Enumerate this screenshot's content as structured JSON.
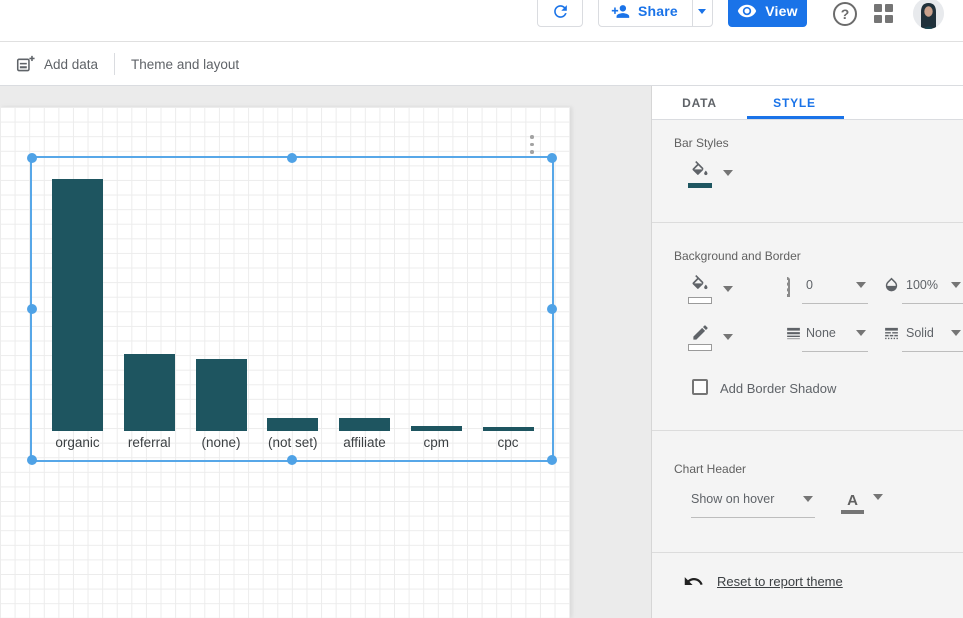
{
  "topbar": {
    "share_label": "Share",
    "view_label": "View",
    "help_glyph": "?"
  },
  "toolbar": {
    "add_data_label": "Add data",
    "theme_layout_label": "Theme and layout"
  },
  "panel": {
    "tabs": [
      {
        "label": "DATA"
      },
      {
        "label": "STYLE"
      }
    ],
    "active_tab": "STYLE",
    "bar_styles": {
      "title": "Bar Styles",
      "bar_color": "#1e5560"
    },
    "background_border": {
      "title": "Background and Border",
      "corner_radius_value": "0",
      "opacity_value": "100%",
      "border_weight_value": "None",
      "border_style_value": "Solid",
      "shadow_label": "Add Border Shadow",
      "shadow_checked": false
    },
    "chart_header": {
      "title": "Chart Header",
      "mode_value": "Show on hover"
    },
    "reset_label": "Reset to report theme"
  },
  "chart_data": {
    "type": "bar",
    "title": "",
    "xlabel": "",
    "ylabel": "",
    "categories": [
      "organic",
      "referral",
      "(none)",
      "(not set)",
      "affiliate",
      "cpm",
      "cpc"
    ],
    "values": [
      252,
      77,
      72,
      13,
      13,
      5,
      4
    ],
    "value_unit": "relative-pixel-height (no value axis shown)",
    "value_axis_visible": false,
    "grid": false,
    "legend": "none",
    "bar_color": "#1e5560"
  },
  "colors": {
    "accent_blue": "#1a73e8",
    "selection_blue": "#57a7e8",
    "bar_teal": "#1e5560",
    "canvas_bg": "#ebebeb",
    "panel_bg": "#f4f4f4"
  }
}
